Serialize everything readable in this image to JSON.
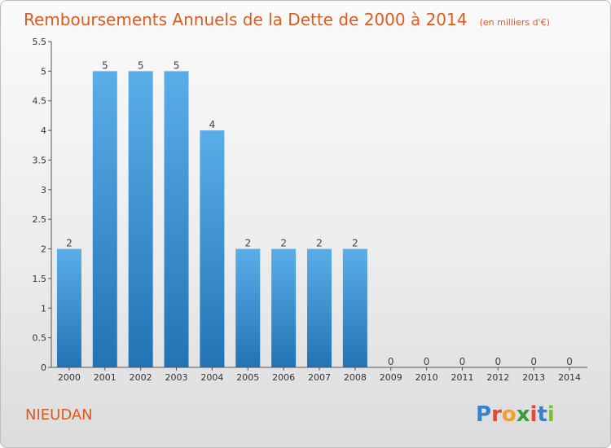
{
  "title": "Remboursements Annuels de la Dette de 2000 à 2014",
  "subtitle": "(en milliers d'€)",
  "commune": "NIEUDAN",
  "brand": {
    "letters": [
      "P",
      "r",
      "o",
      "x",
      "i",
      "t",
      "i"
    ],
    "colors": [
      "#3a7fd0",
      "#e8472a",
      "#f0a024",
      "#3a9b3a",
      "#e8472a",
      "#3a7fd0",
      "#7cbd3c"
    ]
  },
  "colors": {
    "bar_top": "#5aaee8",
    "bar_bottom": "#2273b4",
    "accent": "#e05a1f"
  },
  "chart_data": {
    "type": "bar",
    "categories": [
      "2000",
      "2001",
      "2002",
      "2003",
      "2004",
      "2005",
      "2006",
      "2007",
      "2008",
      "2009",
      "2010",
      "2011",
      "2012",
      "2013",
      "2014"
    ],
    "values": [
      2,
      5,
      5,
      5,
      4,
      2,
      2,
      2,
      2,
      0,
      0,
      0,
      0,
      0,
      0
    ],
    "ylim": [
      0,
      5.5
    ],
    "yticks": [
      "0",
      "0.5",
      "1",
      "1.5",
      "2",
      "2.5",
      "3",
      "3.5",
      "4",
      "4.5",
      "5",
      "5.5"
    ],
    "grid": false,
    "legend": "none"
  }
}
